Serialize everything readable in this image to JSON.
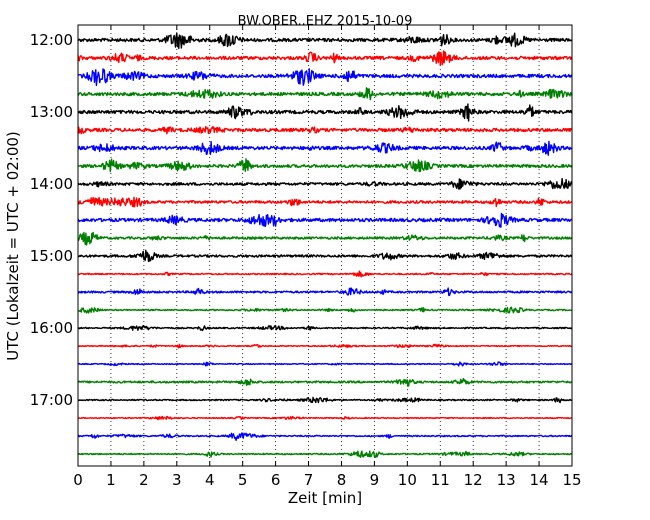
{
  "chart_data": {
    "type": "line",
    "title": "BW.OBER..EHZ 2015-10-09",
    "xlabel": "Zeit  [min]",
    "ylabel": "UTC (Lokalzeit = UTC + 02:00)",
    "xlim": [
      0,
      15
    ],
    "x_ticks": [
      0,
      1,
      2,
      3,
      4,
      5,
      6,
      7,
      8,
      9,
      10,
      11,
      12,
      13,
      14,
      15
    ],
    "grid": "vertical dotted lines at each minute",
    "y_tick_labels": [
      "12:00",
      "13:00",
      "14:00",
      "15:00",
      "16:00",
      "17:00"
    ],
    "trace_color_cycle": [
      "#000000",
      "#ff0000",
      "#0000ff",
      "#008000"
    ],
    "traces": [
      {
        "start": "12:00",
        "color": "#000000",
        "amplitude": 1.0
      },
      {
        "start": "12:15",
        "color": "#ff0000",
        "amplitude": 1.0
      },
      {
        "start": "12:30",
        "color": "#0000ff",
        "amplitude": 1.0
      },
      {
        "start": "12:45",
        "color": "#008000",
        "amplitude": 1.0
      },
      {
        "start": "13:00",
        "color": "#000000",
        "amplitude": 1.0
      },
      {
        "start": "13:15",
        "color": "#ff0000",
        "amplitude": 1.0
      },
      {
        "start": "13:30",
        "color": "#0000ff",
        "amplitude": 1.0
      },
      {
        "start": "13:45",
        "color": "#008000",
        "amplitude": 0.9
      },
      {
        "start": "14:00",
        "color": "#000000",
        "amplitude": 0.8
      },
      {
        "start": "14:15",
        "color": "#ff0000",
        "amplitude": 0.8
      },
      {
        "start": "14:30",
        "color": "#0000ff",
        "amplitude": 1.0
      },
      {
        "start": "14:45",
        "color": "#008000",
        "amplitude": 0.7
      },
      {
        "start": "15:00",
        "color": "#000000",
        "amplitude": 0.7
      },
      {
        "start": "15:15",
        "color": "#ff0000",
        "amplitude": 0.4
      },
      {
        "start": "15:30",
        "color": "#0000ff",
        "amplitude": 0.6
      },
      {
        "start": "15:45",
        "color": "#008000",
        "amplitude": 0.4
      },
      {
        "start": "16:00",
        "color": "#000000",
        "amplitude": 0.4
      },
      {
        "start": "16:15",
        "color": "#ff0000",
        "amplitude": 0.3
      },
      {
        "start": "16:30",
        "color": "#0000ff",
        "amplitude": 0.3
      },
      {
        "start": "16:45",
        "color": "#008000",
        "amplitude": 0.6
      },
      {
        "start": "17:00",
        "color": "#000000",
        "amplitude": 0.4
      },
      {
        "start": "17:15",
        "color": "#ff0000",
        "amplitude": 0.3
      },
      {
        "start": "17:30",
        "color": "#0000ff",
        "amplitude": 0.4
      },
      {
        "start": "17:45",
        "color": "#008000",
        "amplitude": 0.4
      }
    ]
  }
}
